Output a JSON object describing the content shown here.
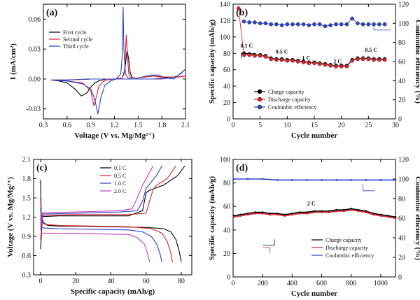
{
  "chart_data": [
    {
      "panel_label": "(a)",
      "type": "line",
      "xlabel": "Voltage (V vs. Mg/Mg²⁺)",
      "ylabel": "I (mA/cm²)",
      "xlim": [
        0.3,
        2.1
      ],
      "ylim": [
        -0.04,
        0.075
      ],
      "xticks": [
        "0.3",
        "0.6",
        "0.9",
        "1.2",
        "1.5",
        "1.8",
        "2.1"
      ],
      "yticks": [
        "-0.03",
        "0.00",
        "0.03",
        "0.06"
      ],
      "legend_position": "top-left",
      "series": [
        {
          "name": "First cycle",
          "color": "#000000",
          "x": [
            0.4,
            0.5,
            0.6,
            0.7,
            0.78,
            0.85,
            0.9,
            0.95,
            1.0,
            1.05,
            1.1,
            1.2,
            1.3,
            1.32,
            1.34,
            1.36,
            1.38,
            1.4,
            1.42,
            1.45,
            1.5,
            1.6,
            1.7,
            1.8,
            1.9,
            2.0,
            2.1,
            2.0,
            1.9,
            1.8,
            1.7,
            1.6,
            1.5,
            1.2,
            0.9,
            0.6,
            0.4
          ],
          "y": [
            -0.001,
            -0.002,
            -0.004,
            -0.01,
            -0.017,
            -0.014,
            -0.008,
            -0.004,
            -0.002,
            -0.001,
            0.0,
            0.0,
            0.001,
            0.005,
            0.015,
            0.029,
            0.02,
            0.006,
            0.002,
            0.001,
            0.001,
            0.002,
            0.003,
            0.002,
            0.002,
            0.002,
            0.003,
            0.002,
            0.002,
            0.001,
            0.0,
            0.0,
            0.0,
            0.0,
            0.0,
            -0.001,
            -0.001
          ]
        },
        {
          "name": "Second cycle",
          "color": "#d9232a",
          "x": [
            0.4,
            0.6,
            0.8,
            0.9,
            0.94,
            0.97,
            1.0,
            1.05,
            1.1,
            1.2,
            1.3,
            1.33,
            1.35,
            1.36,
            1.38,
            1.4,
            1.45,
            1.5,
            1.6,
            1.7,
            1.8,
            1.9,
            2.0,
            2.1,
            2.0,
            1.9,
            1.8,
            1.7,
            1.6,
            1.5,
            1.2,
            0.9,
            0.6,
            0.4
          ],
          "y": [
            -0.001,
            -0.002,
            -0.004,
            -0.012,
            -0.027,
            -0.018,
            -0.008,
            -0.003,
            -0.001,
            0.0,
            0.001,
            0.01,
            0.044,
            0.03,
            0.006,
            0.002,
            0.001,
            0.001,
            0.002,
            0.003,
            0.002,
            0.002,
            0.002,
            0.003,
            0.002,
            0.001,
            0.001,
            0.0,
            0.0,
            0.0,
            0.0,
            0.0,
            -0.001,
            -0.001
          ]
        },
        {
          "name": "Third cycle",
          "color": "#2b43c8",
          "x": [
            0.4,
            0.6,
            0.8,
            0.9,
            0.95,
            0.99,
            1.03,
            1.08,
            1.15,
            1.22,
            1.28,
            1.3,
            1.31,
            1.32,
            1.34,
            1.37,
            1.45,
            1.55,
            1.65,
            1.75,
            1.85,
            1.95,
            2.05,
            2.1,
            2.0,
            1.9,
            1.8,
            1.7,
            1.6,
            1.5,
            1.2,
            0.9,
            0.6,
            0.4
          ],
          "y": [
            -0.001,
            -0.002,
            -0.005,
            -0.01,
            -0.02,
            -0.035,
            -0.018,
            -0.006,
            -0.002,
            0.0,
            0.005,
            0.025,
            0.072,
            0.03,
            0.005,
            0.001,
            0.0,
            0.002,
            0.004,
            0.004,
            0.001,
            0.0,
            0.006,
            0.01,
            0.003,
            0.001,
            0.0,
            0.0,
            0.0,
            0.0,
            0.0,
            0.0,
            -0.001,
            -0.001
          ]
        }
      ]
    },
    {
      "panel_label": "(b)",
      "type": "scatter",
      "xlabel": "Cycle number",
      "ylabel": "Specific capacity (mAh/g)",
      "ylabel_right": "Coulombic efficiency (%)",
      "xlim": [
        0,
        30
      ],
      "ylim": [
        0,
        140
      ],
      "ylim_right": [
        0,
        120
      ],
      "xticks": [
        "0",
        "5",
        "10",
        "15",
        "20",
        "25",
        "30"
      ],
      "yticks": [
        "0",
        "20",
        "40",
        "60",
        "80",
        "100",
        "120",
        "140"
      ],
      "yticks_right": [
        "0",
        "20",
        "40",
        "60",
        "80",
        "100",
        "120"
      ],
      "legend_position": "bottom-left",
      "annotations": [
        "0.1 C",
        "0.5 C",
        "1 C",
        "2 C",
        "0.5 C"
      ],
      "x": [
        1,
        2,
        3,
        4,
        5,
        6,
        7,
        8,
        9,
        10,
        11,
        12,
        13,
        14,
        15,
        16,
        17,
        18,
        19,
        20,
        21,
        22,
        23,
        24,
        25,
        26,
        27,
        28
      ],
      "series": [
        {
          "name": "Charge capacity",
          "color": "#000000",
          "axis": "left",
          "values": [
            null,
            80,
            79,
            78,
            78,
            77,
            74,
            73,
            73,
            72,
            72,
            71,
            70,
            69,
            69,
            68,
            67,
            66,
            65,
            65,
            65,
            72,
            74,
            74,
            74,
            73,
            73,
            73
          ]
        },
        {
          "name": "Discharge capacity",
          "color": "#d9232a",
          "axis": "left",
          "values": [
            135,
            78,
            78,
            77,
            77,
            76,
            73,
            72,
            72,
            71,
            71,
            70,
            69,
            68,
            68,
            67,
            66,
            65,
            64,
            64,
            64,
            71,
            73,
            73,
            73,
            72,
            72,
            72
          ]
        },
        {
          "name": "Coulombic efficiency",
          "color": "#2b43c8",
          "axis": "right",
          "values": [
            null,
            102,
            101,
            101,
            100,
            100,
            99,
            99,
            98,
            99,
            99,
            99,
            99,
            98,
            99,
            99,
            97,
            98,
            99,
            99,
            99,
            105,
            100,
            99,
            99,
            99,
            99,
            99
          ]
        }
      ]
    },
    {
      "panel_label": "(c)",
      "type": "line",
      "xlabel": "Specific capacity (mAh/g)",
      "ylabel": "Voltage (V vs. Mg/Mg²⁺)",
      "xlim": [
        -4,
        86
      ],
      "ylim": [
        0.3,
        2.1
      ],
      "xticks": [
        "0",
        "20",
        "40",
        "60",
        "80"
      ],
      "yticks": [
        "0.3",
        "0.6",
        "0.9",
        "1.2",
        "1.5",
        "1.8",
        "2.1"
      ],
      "legend_position": "top-right",
      "series": [
        {
          "name": "0.1 C",
          "color": "#000000",
          "discharge_x": [
            0,
            0.4,
            1.5,
            4,
            10,
            20,
            40,
            60,
            70,
            74,
            77,
            79,
            80
          ],
          "discharge_y": [
            1.78,
            1.2,
            1.12,
            1.07,
            1.06,
            1.06,
            1.05,
            1.04,
            1.02,
            0.97,
            0.85,
            0.65,
            0.5
          ],
          "charge_x": [
            0,
            1,
            3,
            10,
            30,
            50,
            58,
            60,
            62,
            70,
            78,
            82
          ],
          "charge_y": [
            0.7,
            1.21,
            1.21,
            1.22,
            1.22,
            1.22,
            1.3,
            1.58,
            1.62,
            1.7,
            1.85,
            2.0
          ]
        },
        {
          "name": "0.5 C",
          "color": "#d9232a",
          "discharge_x": [
            0,
            0.4,
            2,
            10,
            30,
            50,
            63,
            69,
            72,
            74,
            75
          ],
          "discharge_y": [
            1.5,
            1.12,
            1.09,
            1.07,
            1.06,
            1.05,
            1.02,
            0.95,
            0.82,
            0.65,
            0.5
          ],
          "charge_x": [
            0,
            1,
            3,
            20,
            50,
            60,
            62,
            64,
            66,
            72,
            77
          ],
          "charge_y": [
            0.85,
            1.22,
            1.23,
            1.24,
            1.24,
            1.26,
            1.45,
            1.63,
            1.7,
            1.8,
            2.0
          ]
        },
        {
          "name": "1.0 C",
          "color": "#2b43c8",
          "discharge_x": [
            0,
            0.4,
            2,
            10,
            30,
            50,
            58,
            63,
            66,
            68,
            69
          ],
          "discharge_y": [
            1.35,
            1.05,
            1.03,
            1.02,
            1.01,
            1.0,
            0.97,
            0.9,
            0.78,
            0.62,
            0.5
          ],
          "charge_x": [
            0,
            1,
            3,
            20,
            45,
            55,
            58,
            60,
            63,
            66,
            69
          ],
          "charge_y": [
            1.0,
            1.25,
            1.25,
            1.26,
            1.28,
            1.3,
            1.45,
            1.65,
            1.75,
            1.85,
            2.0
          ]
        },
        {
          "name": "2.0 C",
          "color": "#c03cc8",
          "discharge_x": [
            0,
            0.4,
            2,
            10,
            30,
            50,
            55,
            59,
            61,
            62
          ],
          "discharge_y": [
            1.2,
            0.95,
            0.95,
            0.95,
            0.94,
            0.93,
            0.88,
            0.78,
            0.62,
            0.5
          ],
          "charge_x": [
            0,
            1,
            3,
            20,
            45,
            52,
            55,
            58,
            61,
            64
          ],
          "charge_y": [
            1.05,
            1.27,
            1.27,
            1.28,
            1.3,
            1.33,
            1.5,
            1.7,
            1.85,
            2.0
          ]
        }
      ]
    },
    {
      "panel_label": "(d)",
      "type": "line",
      "xlabel": "Cycle number",
      "ylabel": "Specific capacity (mAh/g)",
      "ylabel_right": "Coulombic efficiency (%)",
      "xlim": [
        0,
        1100
      ],
      "ylim": [
        0,
        100
      ],
      "ylim_right": [
        0,
        120
      ],
      "xticks": [
        "0",
        "200",
        "400",
        "600",
        "800",
        "1000"
      ],
      "yticks": [
        "0",
        "20",
        "40",
        "60",
        "80",
        "100"
      ],
      "yticks_right": [
        "0",
        "20",
        "40",
        "60",
        "80",
        "100",
        "120"
      ],
      "legend_position": "bottom-right",
      "annotations": [
        "2 C"
      ],
      "series": [
        {
          "name": "Charge capacity",
          "color": "#000000",
          "axis": "left",
          "x": [
            5,
            50,
            100,
            150,
            200,
            250,
            300,
            350,
            400,
            450,
            500,
            550,
            600,
            650,
            700,
            750,
            800,
            850,
            900,
            950,
            1000,
            1050,
            1100
          ],
          "y": [
            52,
            53,
            54,
            55,
            55,
            54,
            54,
            53,
            54,
            55,
            55,
            56,
            56,
            56,
            57,
            57,
            58,
            57,
            56,
            54,
            53,
            52,
            51
          ]
        },
        {
          "name": "Discharge capacity",
          "color": "#d9232a",
          "axis": "left",
          "x": [
            5,
            50,
            100,
            150,
            200,
            250,
            300,
            350,
            400,
            450,
            500,
            550,
            600,
            650,
            700,
            750,
            800,
            850,
            900,
            950,
            1000,
            1050,
            1100
          ],
          "y": [
            51,
            52,
            53,
            54,
            54,
            53,
            53,
            52,
            53,
            54,
            54,
            55,
            55,
            55,
            56,
            56,
            57,
            56,
            55,
            53,
            52,
            51,
            50
          ]
        },
        {
          "name": "Coulombic efficiency",
          "color": "#2b43c8",
          "axis": "right",
          "x": [
            5,
            100,
            200,
            300,
            400,
            500,
            600,
            700,
            800,
            900,
            1000,
            1100
          ],
          "y": [
            100,
            100,
            100,
            99,
            99,
            99,
            99,
            99,
            99,
            99,
            99,
            99
          ]
        }
      ]
    }
  ]
}
